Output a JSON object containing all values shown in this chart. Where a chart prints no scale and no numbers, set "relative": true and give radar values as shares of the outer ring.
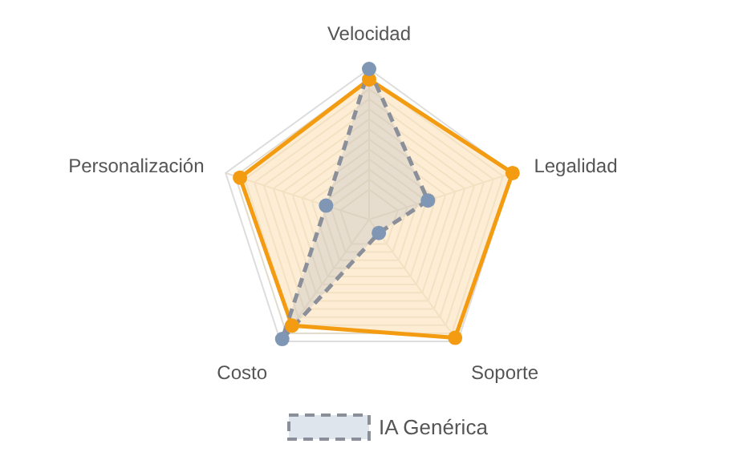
{
  "chart_data": {
    "type": "radar",
    "relative": true,
    "categories": [
      "Velocidad",
      "Legalidad",
      "Soporte",
      "Costo",
      "Personalización"
    ],
    "series": [
      {
        "color": "#f39c12",
        "values": [
          0.93,
          1.0,
          0.97,
          0.87,
          0.9
        ]
      },
      {
        "name": "IA Genérica",
        "color": "#7f96b5",
        "line_style": "dashed",
        "values": [
          1.0,
          0.41,
          0.11,
          0.98,
          0.3
        ]
      }
    ],
    "grid": true,
    "legend": "bottom",
    "marker": "circle"
  }
}
